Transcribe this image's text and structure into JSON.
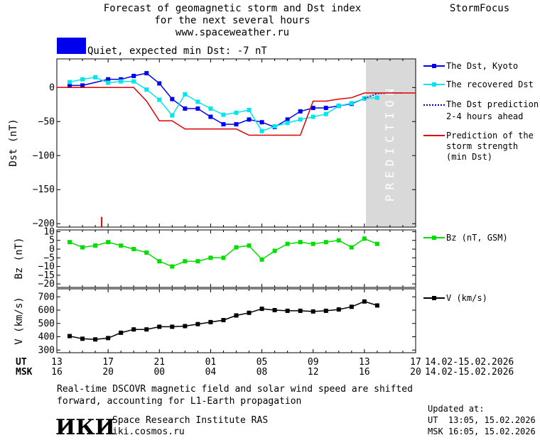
{
  "header": {
    "title_line1": "Forecast of geomagnetic storm and Dst index",
    "title_line2": "for the next several hours",
    "website": "www.spaceweather.ru",
    "app_name": "StormFocus",
    "status_text": "Quiet, expected min Dst: -7 nT",
    "status_color": "#0000ee"
  },
  "prediction_label": "PREDICTION",
  "legend": {
    "dst_kyoto": "The Dst, Kyoto",
    "dst_recovered": "The recovered Dst",
    "dst_prediction_l1": "The Dst prediction",
    "dst_prediction_l2": "2-4 hours ahead",
    "storm_l1": "Prediction of the",
    "storm_l2": "storm strength",
    "storm_l3": "(min Dst)",
    "bz": "Bz (nT, GSM)",
    "v": "V (km/s)"
  },
  "time_axis": {
    "ut_label": "UT",
    "msk_label": "MSK",
    "ut_ticks": [
      "13",
      "17",
      "21",
      "01",
      "05",
      "09",
      "13",
      "17"
    ],
    "msk_ticks": [
      "16",
      "20",
      "00",
      "04",
      "08",
      "12",
      "16",
      "20"
    ],
    "date_range_ut": "14.02-15.02.2026",
    "date_range_msk": "14.02-15.02.2026"
  },
  "footer": {
    "note_line1": "Real-time DSCOVR magnetic field and solar wind speed are shifted",
    "note_line2": "forward, accounting for L1-Earth propagation",
    "logo_text": "ИКИ",
    "institute": "Space Research Institute RAS",
    "institute_url": "iki.cosmos.ru",
    "updated_label": "Updated at:",
    "updated_ut": "UT  13:05, 15.02.2026",
    "updated_msk": "MSK 16:05, 15.02.2026"
  },
  "colors": {
    "dst_kyoto": "#0000ee",
    "dst_recovered": "#00e5ee",
    "dst_prediction": "#0000aa",
    "storm_strength": "#dd0000",
    "bz": "#00dd00",
    "v": "#000000",
    "prediction_zone": "#d9d9d9"
  },
  "chart_data": [
    {
      "type": "line",
      "ylabel": "Dst (nT)",
      "xlim_hours": [
        0,
        28
      ],
      "prediction_start_hours": 24,
      "ylim": [
        -205,
        42
      ],
      "yticks": [
        0,
        -50,
        -100,
        -150,
        -200
      ],
      "series": [
        {
          "name": "The Dst, Kyoto",
          "x": [
            1,
            2,
            4,
            5,
            6,
            7,
            8,
            9,
            10,
            11,
            12,
            13,
            14,
            15,
            16,
            17,
            18,
            19,
            20,
            21,
            22,
            23,
            24
          ],
          "y": [
            3,
            3,
            12,
            12,
            17,
            21,
            6,
            -17,
            -31,
            -31,
            -43,
            -54,
            -54,
            -47,
            -51,
            -58,
            -47,
            -35,
            -30,
            -30,
            -27,
            -24,
            -16
          ]
        },
        {
          "name": "The recovered Dst",
          "x": [
            1,
            2,
            3,
            4,
            5,
            6,
            7,
            8,
            9,
            10,
            11,
            12,
            13,
            14,
            15,
            16,
            17,
            18,
            19,
            20,
            21,
            22,
            23,
            24,
            25
          ],
          "y": [
            8,
            12,
            15,
            7,
            9,
            9,
            -3,
            -18,
            -41,
            -10,
            -21,
            -31,
            -40,
            -37,
            -33,
            -64,
            -57,
            -52,
            -47,
            -43,
            -39,
            -27,
            -23,
            -16,
            -15
          ]
        },
        {
          "name": "The Dst prediction 2-4 hours ahead",
          "x": [
            24,
            25,
            26,
            27
          ],
          "y": [
            -16,
            -9,
            -8,
            -8
          ]
        },
        {
          "name": "Prediction of the storm strength (min Dst)",
          "x": [
            0,
            6,
            7,
            8,
            9,
            10,
            11,
            12,
            13,
            14,
            15,
            16,
            17,
            18,
            19,
            20,
            21,
            22,
            23,
            24,
            25,
            26,
            27,
            28
          ],
          "y": [
            0,
            0,
            -20,
            -49,
            -49,
            -61,
            -61,
            -61,
            -61,
            -61,
            -70,
            -70,
            -70,
            -70,
            -70,
            -20,
            -20,
            -17,
            -15,
            -8,
            -8,
            -8,
            -8,
            -8
          ]
        }
      ],
      "annotations": [
        {
          "kind": "red-tick",
          "x": 3.5,
          "y_from": -205,
          "y_to": -190
        }
      ]
    },
    {
      "type": "line",
      "ylabel": "Bz (nT)",
      "xlim_hours": [
        0,
        28
      ],
      "ylim": [
        -22,
        11
      ],
      "yticks": [
        10,
        5,
        0,
        -5,
        -10,
        -15,
        -20
      ],
      "ytick_labels": [
        "10",
        "5",
        "0",
        "−5",
        "−10",
        "−15",
        "−20"
      ],
      "series": [
        {
          "name": "Bz (nT, GSM)",
          "x": [
            1,
            2,
            3,
            4,
            5,
            6,
            7,
            8,
            9,
            10,
            11,
            12,
            13,
            14,
            15,
            16,
            17,
            18,
            19,
            20,
            21,
            22,
            23,
            24,
            25
          ],
          "y": [
            4,
            1,
            2,
            4,
            2,
            0,
            -2,
            -7,
            -10,
            -7,
            -7,
            -5,
            -5,
            1,
            2,
            -6,
            -1,
            3,
            4,
            3,
            4,
            5,
            1,
            6,
            3
          ]
        }
      ]
    },
    {
      "type": "line",
      "ylabel": "V (km/s)",
      "xlim_hours": [
        0,
        28
      ],
      "ylim": [
        280,
        760
      ],
      "yticks": [
        300,
        400,
        500,
        600,
        700
      ],
      "series": [
        {
          "name": "V (km/s)",
          "x": [
            1,
            2,
            3,
            4,
            5,
            6,
            7,
            8,
            9,
            10,
            11,
            12,
            13,
            14,
            15,
            16,
            17,
            18,
            19,
            20,
            21,
            22,
            23,
            24,
            25
          ],
          "y": [
            405,
            385,
            380,
            390,
            430,
            455,
            455,
            475,
            475,
            480,
            495,
            510,
            525,
            560,
            580,
            610,
            600,
            595,
            595,
            590,
            595,
            605,
            625,
            665,
            635
          ]
        }
      ]
    }
  ]
}
